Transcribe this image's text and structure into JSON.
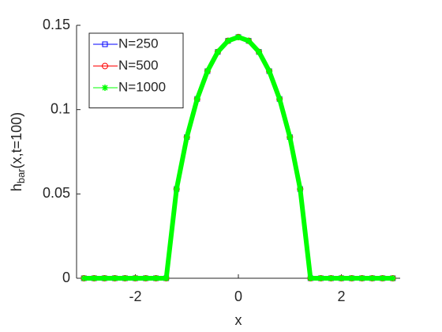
{
  "chart_data": {
    "type": "line",
    "xlabel": "x",
    "ylabel": [
      "h",
      "bar",
      "(x,t=100)"
    ],
    "x": [
      -3.0,
      -2.8,
      -2.6,
      -2.4,
      -2.2,
      -2.0,
      -1.8,
      -1.6,
      -1.4,
      -1.2,
      -1.0,
      -0.8,
      -0.6,
      -0.4,
      -0.2,
      0.0,
      0.2,
      0.4,
      0.6,
      0.8,
      1.0,
      1.2,
      1.4,
      1.6,
      1.8,
      2.0,
      2.2,
      2.4,
      2.6,
      2.8,
      3.0
    ],
    "series": [
      {
        "name": "N=250",
        "color": "#0000ff",
        "marker": "square",
        "values": [
          0,
          0,
          0,
          0,
          0,
          0,
          0,
          0,
          0,
          0.0529,
          0.0837,
          0.1063,
          0.1228,
          0.1342,
          0.1408,
          0.143,
          0.1408,
          0.1342,
          0.1228,
          0.1063,
          0.0837,
          0.0529,
          0,
          0,
          0,
          0,
          0,
          0,
          0,
          0,
          0
        ]
      },
      {
        "name": "N=500",
        "color": "#ff0000",
        "marker": "circle",
        "values": [
          0,
          0,
          0,
          0,
          0,
          0,
          0,
          0,
          0,
          0.0529,
          0.0837,
          0.1063,
          0.1228,
          0.1342,
          0.1408,
          0.143,
          0.1408,
          0.1342,
          0.1228,
          0.1063,
          0.0837,
          0.0529,
          0,
          0,
          0,
          0,
          0,
          0,
          0,
          0,
          0
        ]
      },
      {
        "name": "N=1000",
        "color": "#00ff00",
        "marker": "asterisk",
        "values": [
          0,
          0,
          0,
          0,
          0,
          0,
          0,
          0,
          0,
          0.0529,
          0.0837,
          0.1063,
          0.1228,
          0.1342,
          0.1408,
          0.143,
          0.1408,
          0.1342,
          0.1228,
          0.1063,
          0.0837,
          0.0529,
          0,
          0,
          0,
          0,
          0,
          0,
          0,
          0,
          0
        ]
      }
    ],
    "xlim": [
      -3.1416,
      3.1416
    ],
    "xticks": [
      -2,
      0,
      2
    ],
    "ylim": [
      0,
      0.15
    ],
    "yticks": [
      0,
      0.05,
      0.1,
      0.15
    ],
    "legend": "top-left"
  }
}
